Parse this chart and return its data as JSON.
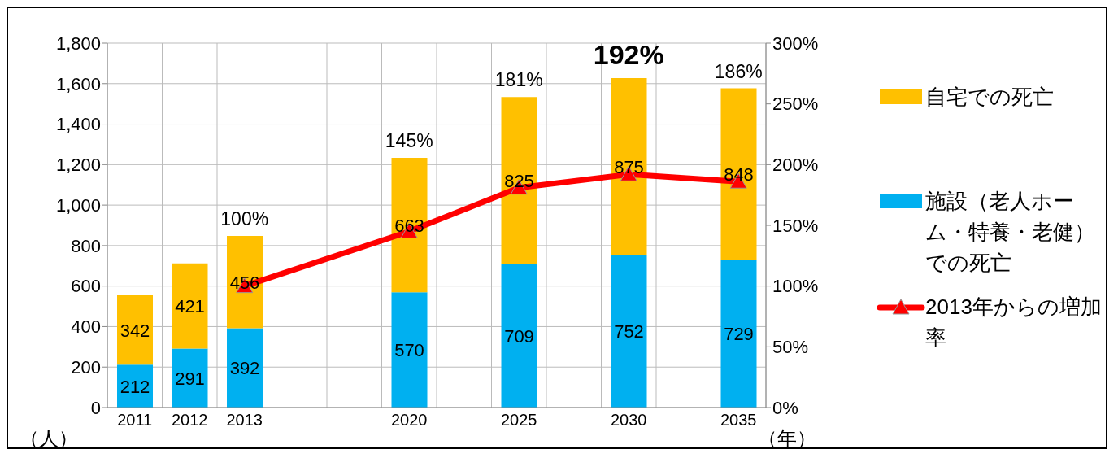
{
  "chart_data": {
    "type": "bar",
    "stacked": true,
    "xlabel": "（年）",
    "ylabel": "（人）",
    "categories": [
      "2011",
      "2012",
      "2013",
      null,
      null,
      "2020",
      null,
      "2025",
      null,
      "2030",
      null,
      "2035"
    ],
    "series": [
      {
        "name": "施設（老人ホーム・特養・老健）での死亡",
        "color": "#00b0f0",
        "values": [
          212,
          291,
          392,
          null,
          null,
          570,
          null,
          709,
          null,
          752,
          null,
          729
        ]
      },
      {
        "name": "自宅での死亡",
        "color": "#ffc000",
        "values": [
          342,
          421,
          456,
          null,
          null,
          663,
          null,
          825,
          null,
          875,
          null,
          848
        ]
      },
      {
        "name": "2013年からの増加率",
        "type": "line",
        "axis": "y2",
        "color": "#ff0000",
        "marker": "triangle",
        "values": [
          null,
          null,
          100,
          null,
          null,
          145,
          null,
          181,
          null,
          192,
          null,
          186
        ],
        "value_labels": [
          null,
          null,
          null,
          null,
          null,
          null,
          null,
          null,
          null,
          null,
          null,
          null
        ]
      }
    ],
    "ylim": [
      0,
      1800
    ],
    "yticks": [
      {
        "value": 0,
        "label": "0"
      },
      {
        "value": 200,
        "label": "200"
      },
      {
        "value": 400,
        "label": "400"
      },
      {
        "value": 600,
        "label": "600"
      },
      {
        "value": 800,
        "label": "800"
      },
      {
        "value": 1000,
        "label": "1,000"
      },
      {
        "value": 1200,
        "label": "1,200"
      },
      {
        "value": 1400,
        "label": "1,400"
      },
      {
        "value": 1600,
        "label": "1,600"
      },
      {
        "value": 1800,
        "label": "1,800"
      }
    ],
    "y2lim": [
      0,
      300
    ],
    "y2ticks": [
      {
        "value": 0,
        "label": "0%"
      },
      {
        "value": 50,
        "label": "50%"
      },
      {
        "value": 100,
        "label": "100%"
      },
      {
        "value": 150,
        "label": "150%"
      },
      {
        "value": 200,
        "label": "200%"
      },
      {
        "value": 250,
        "label": "250%"
      },
      {
        "value": 300,
        "label": "300%"
      }
    ],
    "annotations": [
      {
        "text": "100%",
        "x": "2013",
        "y": 848
      },
      {
        "text": "145%",
        "x": "2020",
        "y": 1233
      },
      {
        "text": "181%",
        "x": "2025",
        "y": 1534
      },
      {
        "text": "192%",
        "x": "2030",
        "y": 1627
      },
      {
        "text": "186%",
        "x": "2035",
        "y": 1577
      }
    ],
    "grid": true,
    "legend": "right",
    "data_labels": true
  }
}
